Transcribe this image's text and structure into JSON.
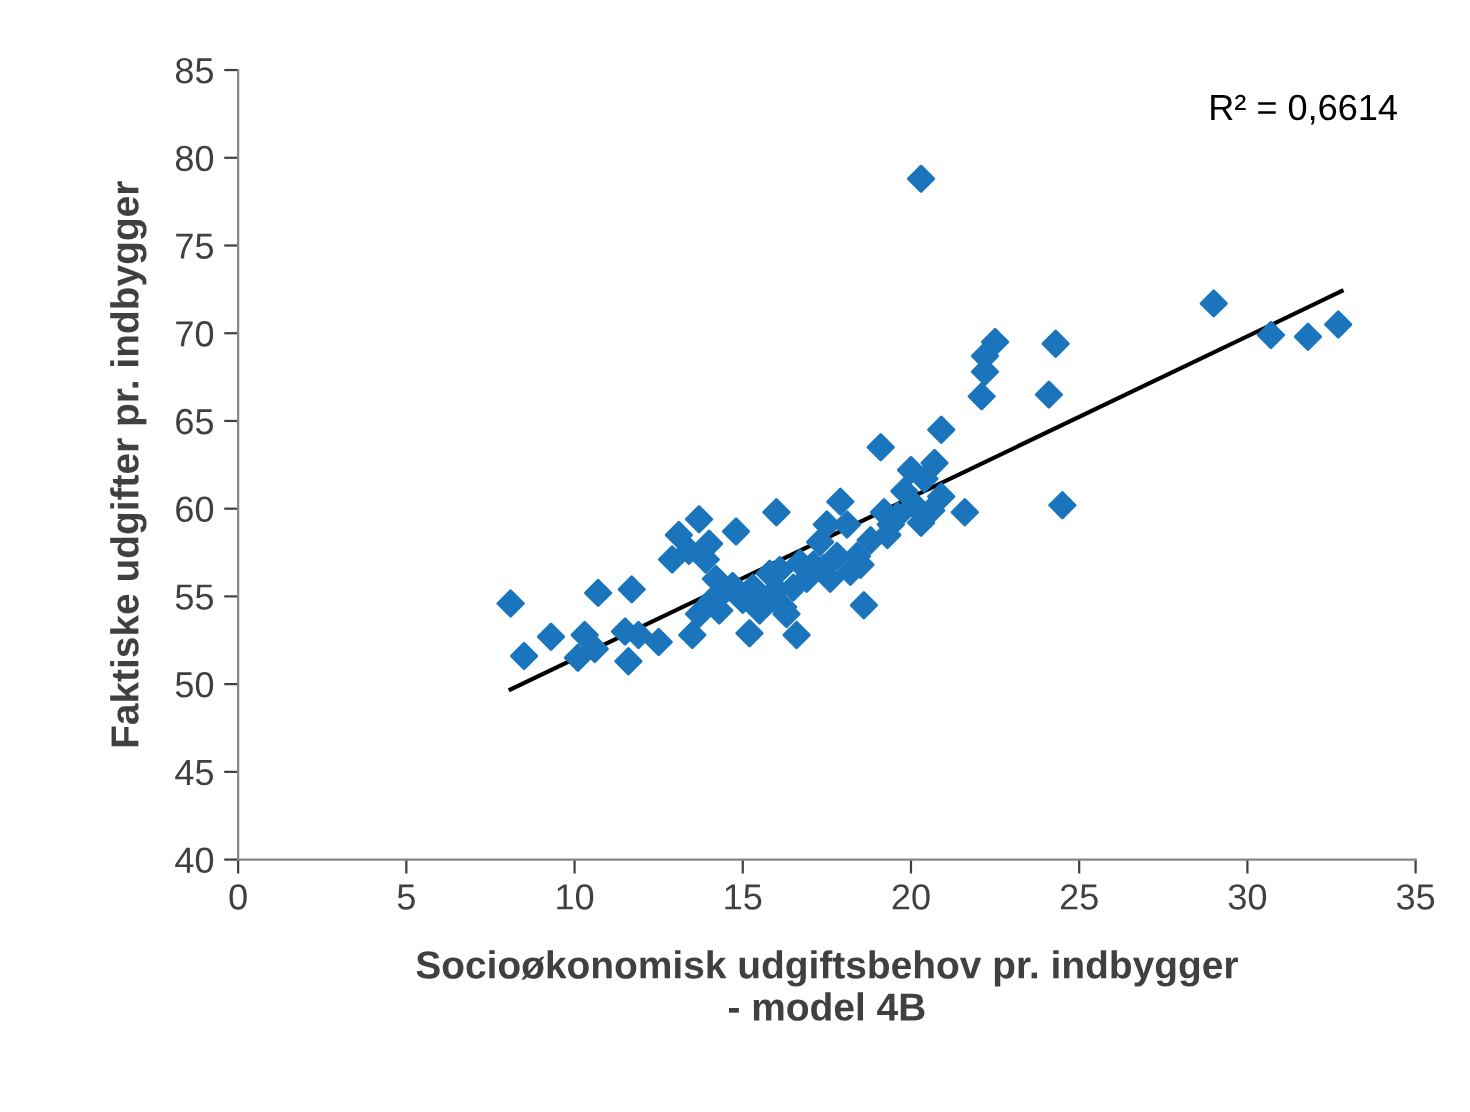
{
  "chart_data": {
    "type": "scatter",
    "xlabel": "Socioøkonomisk udgiftsbehov pr. indbygger\n- model 4B",
    "ylabel": "Faktiske udgifter pr. indbygger",
    "xlim": [
      0,
      35
    ],
    "xticks": [
      0,
      5,
      10,
      15,
      20,
      25,
      30,
      35
    ],
    "ylim": [
      40,
      85
    ],
    "yticks": [
      40,
      45,
      50,
      55,
      60,
      65,
      70,
      75,
      80,
      85
    ],
    "grid": false,
    "legend": false,
    "annotations": [
      "R² = 0,6614"
    ],
    "series": [
      {
        "marker": "diamond",
        "color": "#1a75bc",
        "x": [
          8.1,
          8.5,
          9.3,
          10.1,
          10.3,
          10.6,
          10.7,
          11.5,
          11.6,
          11.7,
          11.9,
          12.5,
          12.9,
          13.1,
          13.4,
          13.5,
          13.7,
          13.7,
          13.9,
          14.0,
          14.1,
          14.2,
          14.3,
          14.4,
          14.7,
          14.8,
          15.0,
          15.2,
          15.3,
          15.5,
          15.7,
          15.8,
          16.0,
          16.0,
          16.1,
          16.2,
          16.3,
          16.5,
          16.6,
          16.7,
          16.9,
          17.1,
          17.3,
          17.4,
          17.5,
          17.6,
          17.8,
          17.9,
          18.1,
          18.2,
          18.4,
          18.5,
          18.6,
          18.8,
          19.1,
          19.2,
          19.3,
          19.4,
          19.6,
          19.8,
          20.0,
          20.1,
          20.3,
          20.3,
          20.4,
          20.6,
          20.7,
          20.9,
          20.9,
          21.6,
          22.1,
          22.2,
          22.2,
          22.5,
          24.1,
          24.3,
          24.5,
          29.0,
          30.7,
          31.8,
          32.7
        ],
        "values": [
          54.6,
          51.6,
          52.7,
          51.5,
          52.8,
          52.0,
          55.2,
          53.0,
          51.3,
          55.4,
          52.8,
          52.4,
          57.1,
          58.5,
          57.6,
          52.8,
          54.0,
          59.4,
          57.1,
          58.0,
          54.8,
          56.0,
          54.2,
          55.2,
          55.6,
          58.7,
          54.8,
          52.9,
          55.5,
          54.2,
          54.8,
          56.3,
          59.8,
          55.4,
          56.5,
          54.4,
          54.0,
          55.5,
          52.8,
          56.9,
          56.0,
          56.8,
          58.1,
          56.6,
          59.1,
          56.0,
          57.3,
          60.4,
          59.1,
          56.4,
          57.3,
          56.8,
          54.5,
          58.2,
          63.5,
          59.8,
          58.5,
          59.1,
          59.6,
          61.0,
          62.2,
          60.2,
          59.2,
          78.8,
          61.7,
          59.9,
          62.6,
          60.7,
          64.5,
          59.8,
          66.4,
          67.8,
          68.7,
          69.5,
          66.5,
          69.4,
          60.2,
          71.7,
          69.9,
          69.8,
          70.5
        ]
      },
      {
        "type": "line",
        "marker": "none",
        "color": "#000000",
        "x": [
          8.1,
          32.8
        ],
        "values": [
          49.7,
          72.4
        ]
      }
    ]
  }
}
